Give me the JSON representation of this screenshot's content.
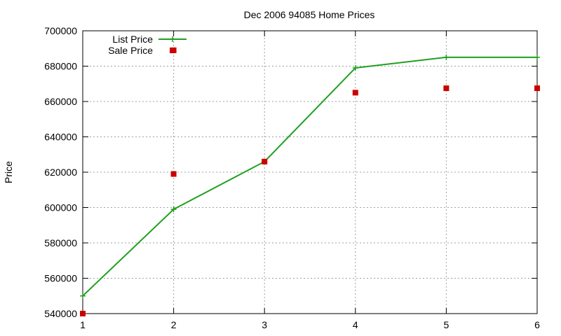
{
  "chart_data": {
    "type": "line",
    "title": "Dec 2006 94085 Home Prices",
    "xlabel": "",
    "ylabel": "Price",
    "xlim": [
      1,
      6
    ],
    "ylim": [
      540000,
      700000
    ],
    "x_ticks": [
      "1",
      "2",
      "3",
      "4",
      "5",
      "6"
    ],
    "y_ticks": [
      "540000",
      "560000",
      "580000",
      "600000",
      "620000",
      "640000",
      "660000",
      "680000",
      "700000"
    ],
    "grid": true,
    "legend_position": "top-left",
    "series": [
      {
        "name": "List Price",
        "style": "linespoints",
        "color": "#1fa01f",
        "x": [
          1,
          2,
          3,
          4,
          5,
          6
        ],
        "y": [
          550000,
          599000,
          626000,
          679000,
          685000,
          685000
        ]
      },
      {
        "name": "Sale Price",
        "style": "points",
        "color": "#cc0000",
        "x": [
          1,
          2,
          2,
          3,
          4,
          5,
          6
        ],
        "y": [
          540000,
          689000,
          619000,
          626000,
          665000,
          667500,
          667500
        ]
      }
    ]
  }
}
